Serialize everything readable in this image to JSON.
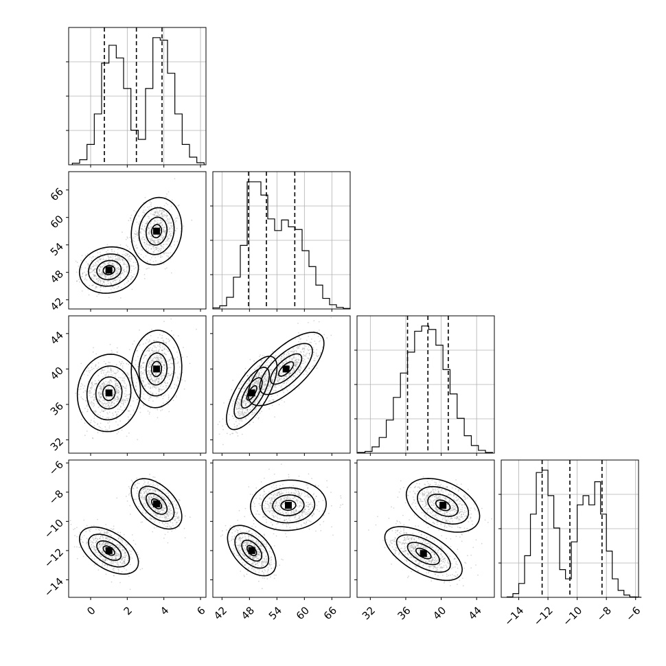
{
  "chart_data": {
    "type": "corner",
    "variables": [
      {
        "range": [
          -1.2,
          6.3
        ],
        "ticks": [
          0,
          2,
          4,
          6
        ],
        "tick_labels": [
          "0",
          "2",
          "4",
          "6"
        ],
        "quantiles": [
          0.75,
          2.5,
          3.9
        ],
        "hist_bins": [
          -1.0,
          -0.6,
          -0.2,
          0.2,
          0.6,
          1.0,
          1.4,
          1.8,
          2.2,
          2.6,
          3.0,
          3.4,
          3.8,
          4.2,
          4.6,
          5.0,
          5.4,
          5.8
        ],
        "hist_counts": [
          3,
          10,
          40,
          100,
          200,
          235,
          210,
          150,
          68,
          50,
          150,
          250,
          245,
          180,
          100,
          40,
          15,
          4
        ]
      },
      {
        "range": [
          40,
          70
        ],
        "ticks": [
          42,
          48,
          54,
          60,
          66
        ],
        "tick_labels": [
          "42",
          "48",
          "54",
          "60",
          "66"
        ],
        "quantiles": [
          47.8,
          51.7,
          57.9
        ],
        "hist_bins": [
          40,
          41.5,
          43,
          44.5,
          46,
          47.5,
          49,
          50.5,
          52,
          53.5,
          55,
          56.5,
          58,
          59.5,
          61,
          62.5,
          64,
          65.5,
          67,
          68.5
        ],
        "hist_counts": [
          2,
          6,
          22,
          60,
          120,
          240,
          240,
          215,
          170,
          148,
          168,
          155,
          150,
          110,
          80,
          45,
          20,
          8,
          3,
          1
        ]
      },
      {
        "range": [
          30.5,
          46
        ],
        "ticks": [
          32,
          36,
          40,
          44
        ],
        "tick_labels": [
          "32",
          "36",
          "40",
          "44"
        ],
        "quantiles": [
          36.2,
          38.5,
          40.8
        ],
        "hist_bins": [
          30.6,
          31.4,
          32.2,
          33.0,
          33.8,
          34.6,
          35.4,
          36.2,
          37.0,
          37.8,
          38.6,
          39.4,
          40.2,
          41.0,
          41.8,
          42.6,
          43.4,
          44.2,
          45.0
        ],
        "hist_counts": [
          2,
          5,
          18,
          45,
          95,
          160,
          230,
          290,
          350,
          365,
          355,
          310,
          240,
          170,
          100,
          50,
          22,
          8,
          2
        ]
      },
      {
        "range": [
          -15.2,
          -5.8
        ],
        "ticks": [
          -14,
          -12,
          -10,
          -8,
          -6
        ],
        "tick_labels": [
          "−14",
          "−12",
          "−10",
          "−8",
          "−6"
        ],
        "quantiles": [
          -12.4,
          -10.5,
          -8.3
        ],
        "hist_bins": [
          -14.8,
          -14.4,
          -14.0,
          -13.6,
          -13.2,
          -12.8,
          -12.4,
          -12.0,
          -11.6,
          -11.2,
          -10.8,
          -10.4,
          -10.0,
          -9.6,
          -9.2,
          -8.8,
          -8.4,
          -8.0,
          -7.6,
          -7.2,
          -6.8,
          -6.4,
          -6.0
        ],
        "hist_counts": [
          1,
          8,
          30,
          90,
          180,
          270,
          275,
          220,
          150,
          60,
          40,
          120,
          200,
          220,
          200,
          250,
          180,
          100,
          40,
          15,
          5,
          1
        ]
      }
    ],
    "pairs": [
      {
        "x": 0,
        "y": 1,
        "modes": [
          {
            "mx": 1.0,
            "my": 48.5,
            "sx": 0.7,
            "sy": 2.2,
            "r": 0.1,
            "w": 1
          },
          {
            "mx": 3.6,
            "my": 57.0,
            "sx": 0.6,
            "sy": 3.2,
            "r": 0.1,
            "w": 1
          }
        ]
      },
      {
        "x": 0,
        "y": 2,
        "modes": [
          {
            "mx": 1.0,
            "my": 37.3,
            "sx": 0.75,
            "sy": 1.9,
            "r": 0.05,
            "w": 1
          },
          {
            "mx": 3.6,
            "my": 40.0,
            "sx": 0.6,
            "sy": 1.9,
            "r": 0.05,
            "w": 1
          }
        ]
      },
      {
        "x": 0,
        "y": 3,
        "modes": [
          {
            "mx": 1.0,
            "my": -12.0,
            "sx": 0.7,
            "sy": 0.7,
            "r": -0.5,
            "w": 1
          },
          {
            "mx": 3.6,
            "my": -8.8,
            "sx": 0.6,
            "sy": 0.75,
            "r": -0.5,
            "w": 1
          }
        ]
      },
      {
        "x": 1,
        "y": 2,
        "modes": [
          {
            "mx": 48.5,
            "my": 37.3,
            "sx": 2.4,
            "sy": 1.8,
            "r": 0.7,
            "w": 1
          },
          {
            "mx": 56.0,
            "my": 40.0,
            "sx": 3.6,
            "sy": 1.8,
            "r": 0.7,
            "w": 1
          }
        ]
      },
      {
        "x": 1,
        "y": 3,
        "modes": [
          {
            "mx": 48.5,
            "my": -12.0,
            "sx": 2.3,
            "sy": 0.75,
            "r": -0.5,
            "w": 1
          },
          {
            "mx": 56.5,
            "my": -8.9,
            "sx": 3.6,
            "sy": 0.75,
            "r": 0.05,
            "w": 1
          }
        ]
      },
      {
        "x": 2,
        "y": 3,
        "modes": [
          {
            "mx": 38.0,
            "my": -12.2,
            "sx": 1.9,
            "sy": 0.8,
            "r": -0.6,
            "w": 1
          },
          {
            "mx": 40.2,
            "my": -8.9,
            "sx": 1.8,
            "sy": 0.8,
            "r": -0.4,
            "w": 1
          }
        ]
      }
    ]
  }
}
